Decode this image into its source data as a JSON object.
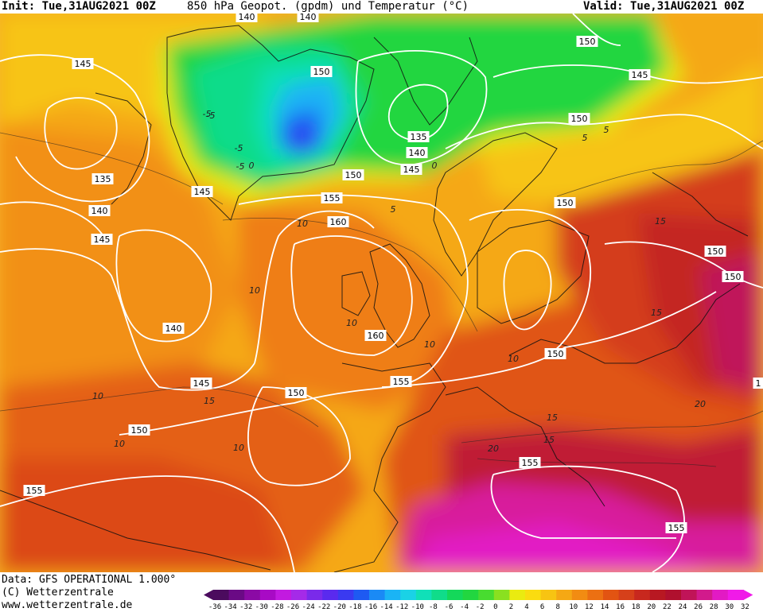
{
  "header": {
    "init": "Init: Tue,31AUG2021 00Z",
    "title": "850 hPa Geopot. (gpdm) und Temperatur (°C)",
    "valid": "Valid: Tue,31AUG2021 00Z"
  },
  "footer": {
    "data_line": "Data: GFS OPERATIONAL 1.000°",
    "copyright": "(C) Wetterzentrale",
    "website": "www.wetterzentrale.de"
  },
  "scale": {
    "ticks": [
      "-36",
      "-34",
      "-32",
      "-30",
      "-28",
      "-26",
      "-24",
      "-22",
      "-20",
      "-18",
      "-16",
      "-14",
      "-12",
      "-10",
      "-8",
      "-6",
      "-4",
      "-2",
      "0",
      "2",
      "4",
      "6",
      "8",
      "10",
      "12",
      "14",
      "16",
      "18",
      "20",
      "22",
      "24",
      "26",
      "28",
      "30",
      "32"
    ],
    "colors": [
      "#4b0b5e",
      "#6a0a85",
      "#8b0aa5",
      "#a80ac5",
      "#c21ae0",
      "#a52ae8",
      "#7a2aea",
      "#5a2aee",
      "#3a3af0",
      "#1e5af2",
      "#1a8af5",
      "#1ab4f5",
      "#1ad2e6",
      "#10e0b8",
      "#10dc8a",
      "#14d85a",
      "#22d640",
      "#48dc30",
      "#8ae020",
      "#eaeb10",
      "#fadc10",
      "#f7c412",
      "#f5a814",
      "#f28c12",
      "#ec7012",
      "#e25412",
      "#d6401a",
      "#c8281e",
      "#b81822",
      "#b0102e",
      "#c01458",
      "#d21a8c",
      "#e21ac4",
      "#f01ae8"
    ]
  },
  "contours": {
    "height_labels": [
      "145",
      "140",
      "140",
      "150",
      "135",
      "140",
      "145",
      "145",
      "150",
      "150",
      "135",
      "140",
      "145",
      "150",
      "145",
      "155",
      "160",
      "150",
      "140",
      "160",
      "150",
      "155",
      "145",
      "150",
      "150",
      "155",
      "155",
      "155",
      "150",
      "150",
      "1"
    ],
    "temp_labels": [
      "-5",
      "0",
      "-5",
      "5",
      "10",
      "5",
      "10",
      "10",
      "15",
      "10",
      "15",
      "15",
      "20",
      "20",
      "15",
      "10",
      "5",
      "10",
      "10",
      "10",
      "-5",
      "-5",
      "0",
      "15"
    ]
  }
}
